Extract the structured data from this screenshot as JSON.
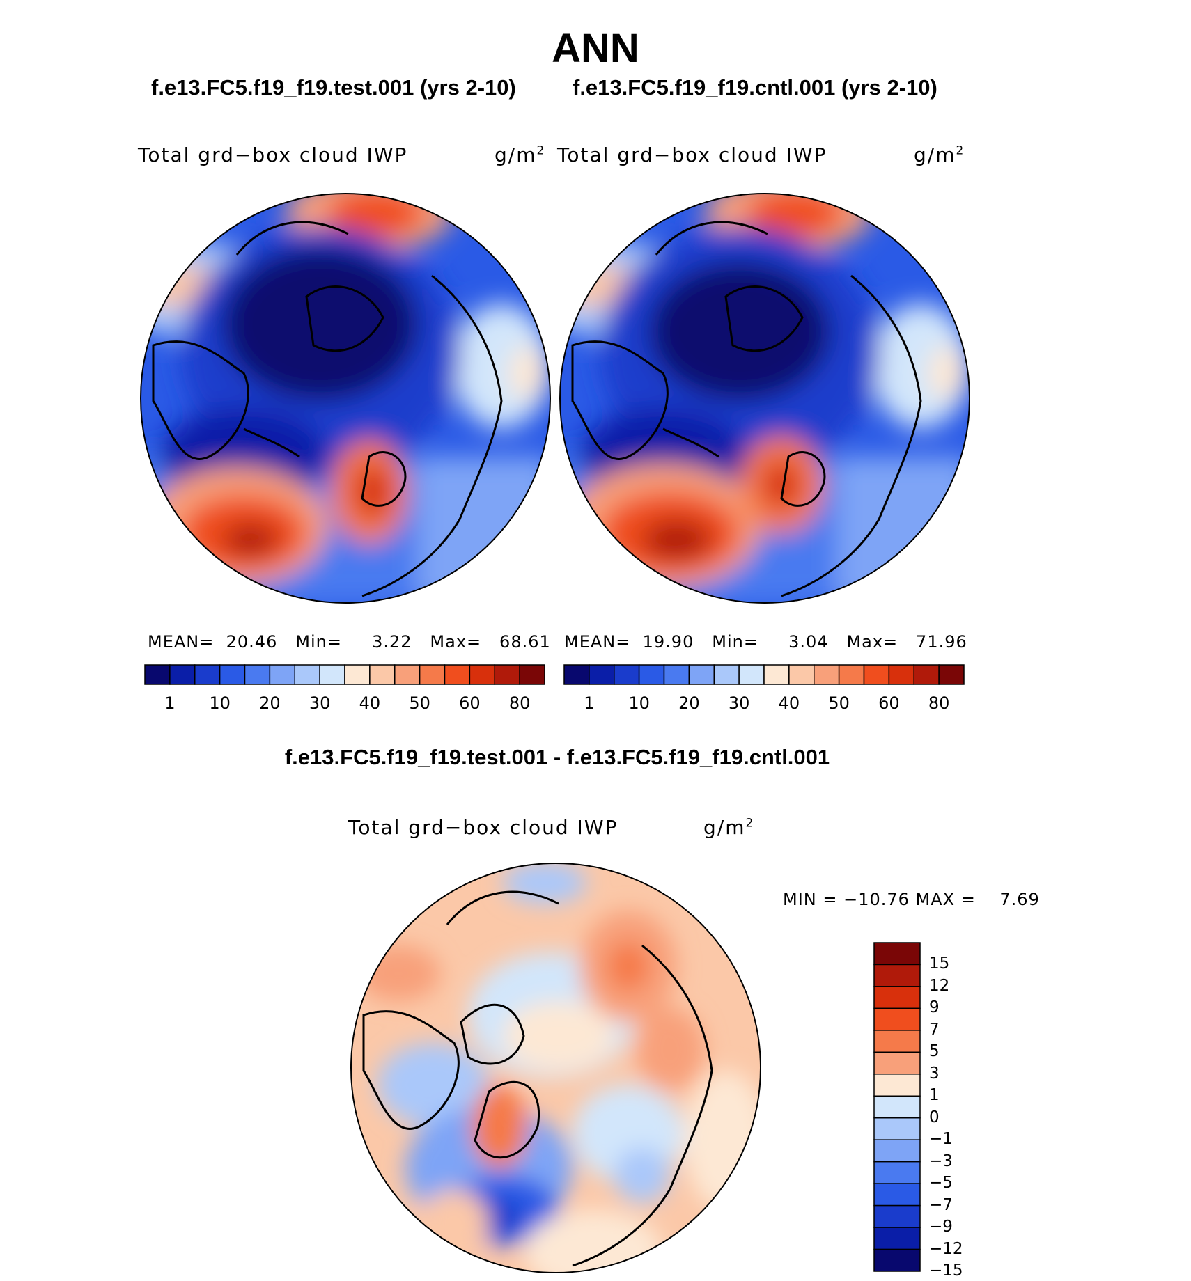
{
  "title": "ANN",
  "panels": [
    {
      "case": "f.e13.FC5.f19_f19.test.001 (yrs 2-10)",
      "variable": "Total grd−box cloud IWP",
      "units_base": "g/m",
      "units_exp": "2",
      "stats": {
        "mean_label": "MEAN=",
        "mean": "20.46",
        "min_label": "Min=",
        "min": "3.22",
        "max_label": "Max=",
        "max": "68.61"
      }
    },
    {
      "case": "f.e13.FC5.f19_f19.cntl.001 (yrs 2-10)",
      "variable": "Total grd−box cloud IWP",
      "units_base": "g/m",
      "units_exp": "2",
      "stats": {
        "mean_label": "MEAN=",
        "mean": "19.90",
        "min_label": "Min=",
        "min": "3.04",
        "max_label": "Max=",
        "max": "71.96"
      }
    }
  ],
  "difference": {
    "case": "f.e13.FC5.f19_f19.test.001 - f.e13.FC5.f19_f19.cntl.001",
    "variable": "Total grd−box cloud IWP",
    "units_base": "g/m",
    "units_exp": "2",
    "minmax": "MIN = −10.76 MAX =    7.69"
  },
  "colorbar_main": {
    "colors": [
      "#08086e",
      "#0a1ea8",
      "#1a3ccc",
      "#2a5ae6",
      "#4a7af0",
      "#7ea4f6",
      "#aac8fa",
      "#d2e6fb",
      "#fde8d4",
      "#fbc8a8",
      "#f8a07a",
      "#f57a4a",
      "#f04e1e",
      "#d8300c",
      "#b01a0a",
      "#7a0606"
    ],
    "labels": [
      "1",
      "10",
      "20",
      "30",
      "40",
      "50",
      "60",
      "80"
    ]
  },
  "colorbar_diff": {
    "colors": [
      "#7a0606",
      "#b01a0a",
      "#d8300c",
      "#f04e1e",
      "#f57a4a",
      "#f8a07a",
      "#fde8d4",
      "#d2e6fb",
      "#aac8fa",
      "#7ea4f6",
      "#4a7af0",
      "#2a5ae6",
      "#1a3ccc",
      "#0a1ea8",
      "#08086e"
    ],
    "labels": [
      "15",
      "12",
      "9",
      "7",
      "5",
      "3",
      "1",
      "0",
      "−1",
      "−3",
      "−5",
      "−7",
      "−9",
      "−12",
      "−15"
    ]
  }
}
